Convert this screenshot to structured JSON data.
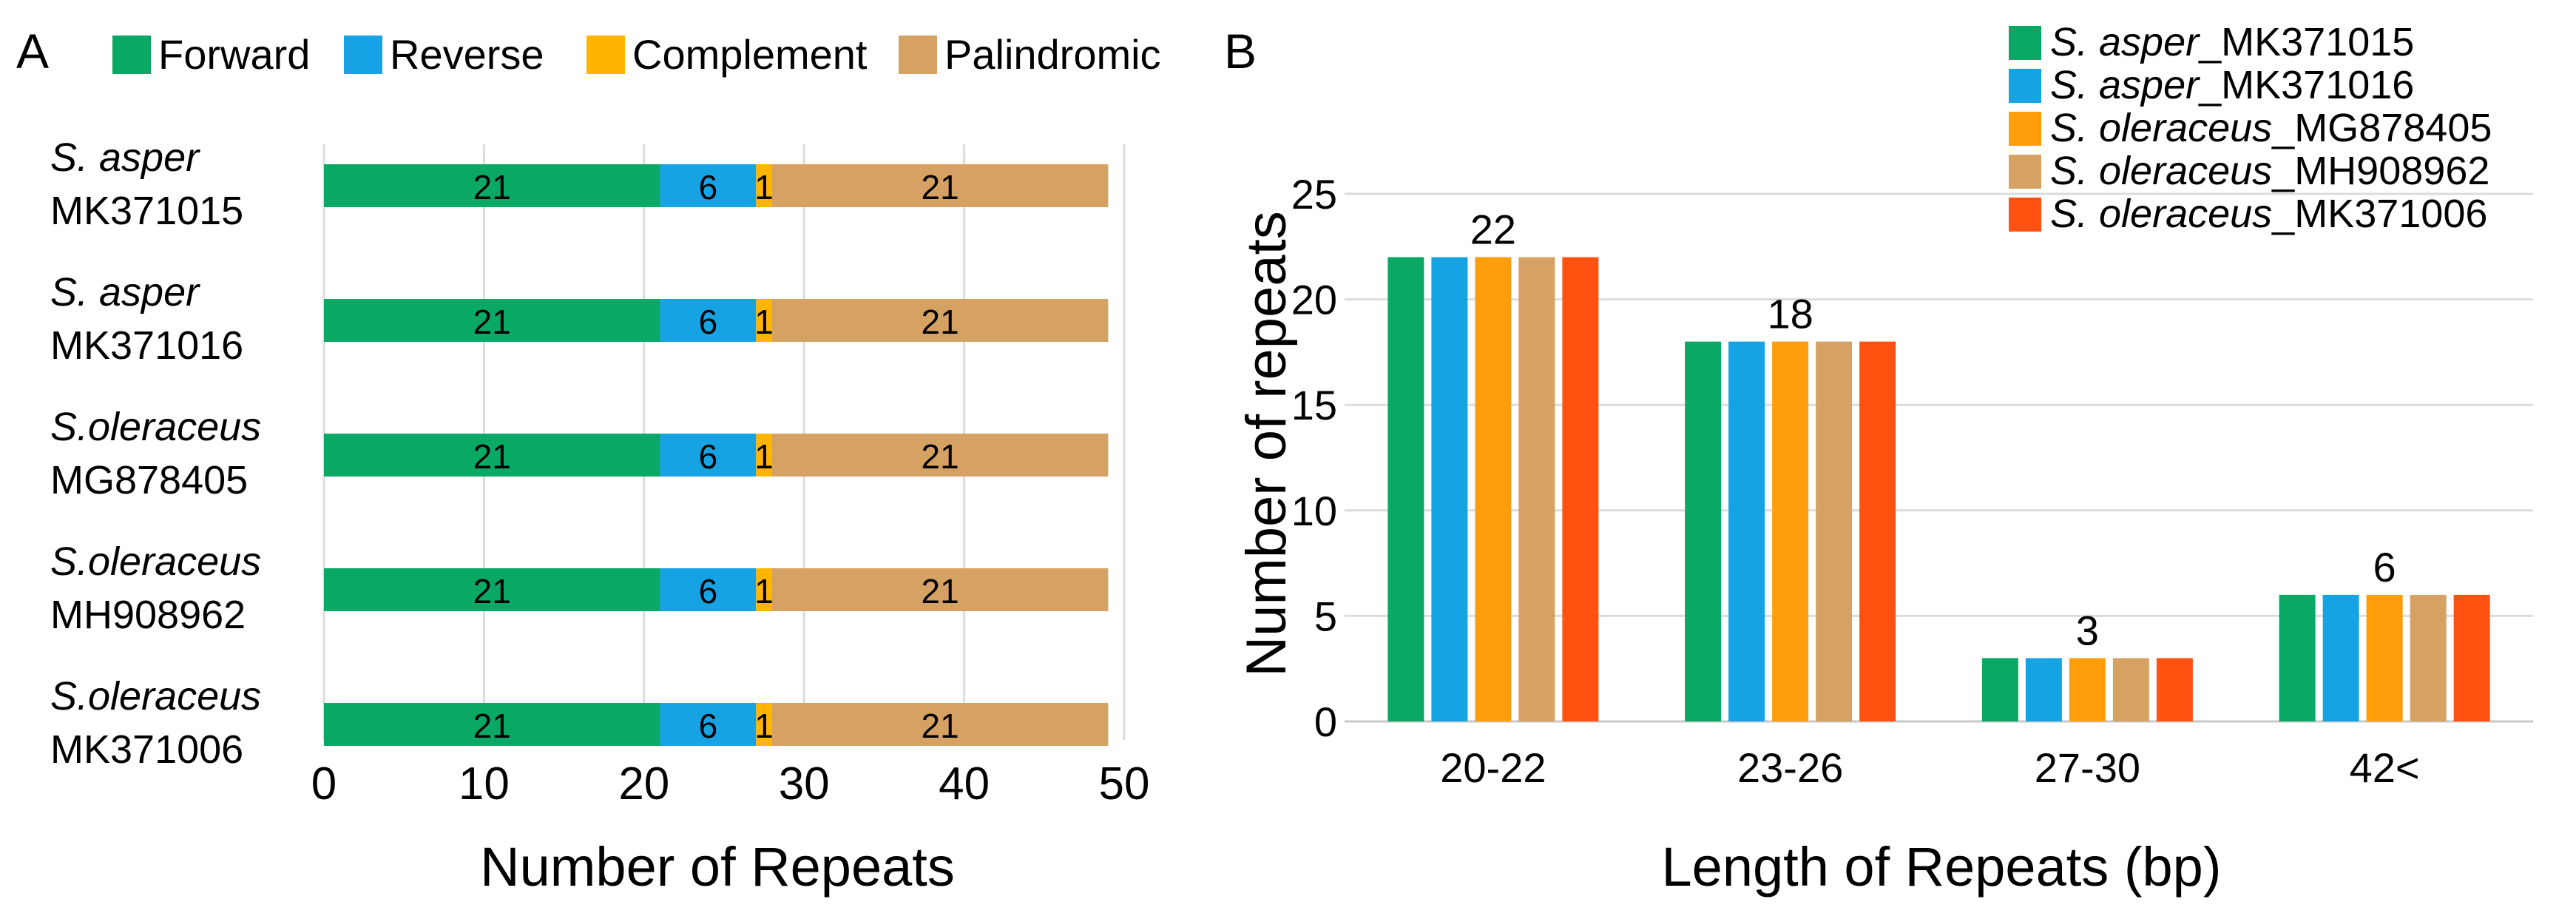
{
  "colors": {
    "forward": "#0aa865",
    "reverse": "#16a3e4",
    "complement": "#ffb400",
    "palindromic": "#d6a264",
    "s1": "#0aa865",
    "s2": "#16a3e4",
    "s3": "#ff9d0a",
    "s4": "#d6a264",
    "s5": "#ff5210",
    "grid": "#dcdcdc"
  },
  "chart_data": [
    {
      "panel": "A",
      "type": "bar",
      "orientation": "horizontal",
      "stacked": true,
      "xlabel": "Number of Repeats",
      "xlim": [
        0,
        50
      ],
      "x_ticks": [
        "0",
        "10",
        "20",
        "30",
        "40",
        "50"
      ],
      "legend_position": "top",
      "categories": [
        {
          "italic": "S. asper",
          "accession": "MK371015"
        },
        {
          "italic": "S. asper",
          "accession": "MK371016"
        },
        {
          "italic": "S.oleraceus",
          "accession": "MG878405"
        },
        {
          "italic": "S.oleraceus",
          "accession": "MH908962"
        },
        {
          "italic": "S.oleraceus",
          "accession": "MK371006"
        }
      ],
      "series": [
        {
          "key": "forward",
          "name": "Forward",
          "values": [
            21,
            21,
            21,
            21,
            21
          ]
        },
        {
          "key": "reverse",
          "name": "Reverse",
          "values": [
            6,
            6,
            6,
            6,
            6
          ]
        },
        {
          "key": "complement",
          "name": "Complement",
          "values": [
            1,
            1,
            1,
            1,
            1
          ]
        },
        {
          "key": "palindromic",
          "name": "Palindromic",
          "values": [
            21,
            21,
            21,
            21,
            21
          ]
        }
      ]
    },
    {
      "panel": "B",
      "type": "bar",
      "orientation": "vertical",
      "xlabel": "Length of Repeats (bp)",
      "ylabel": "Number of repeats",
      "ylim": [
        0,
        25
      ],
      "y_ticks": [
        "0",
        "5",
        "10",
        "15",
        "20",
        "25"
      ],
      "legend_position": "top-right",
      "categories": [
        "20-22",
        "23-26",
        "27-30",
        "42<"
      ],
      "group_labels": [
        "22",
        "18",
        "3",
        "6"
      ],
      "series": [
        {
          "key": "s1",
          "italic": "S. asper",
          "suffix": "_MK371015",
          "values": [
            22,
            18,
            3,
            6
          ]
        },
        {
          "key": "s2",
          "italic": "S. asper",
          "suffix": "_MK371016",
          "values": [
            22,
            18,
            3,
            6
          ]
        },
        {
          "key": "s3",
          "italic": "S. oleraceus",
          "suffix": "_MG878405",
          "values": [
            22,
            18,
            3,
            6
          ]
        },
        {
          "key": "s4",
          "italic": "S. oleraceus",
          "suffix": "_MH908962",
          "values": [
            22,
            18,
            3,
            6
          ]
        },
        {
          "key": "s5",
          "italic": "S. oleraceus",
          "suffix": "_MK371006",
          "values": [
            22,
            18,
            3,
            6
          ]
        }
      ]
    }
  ]
}
